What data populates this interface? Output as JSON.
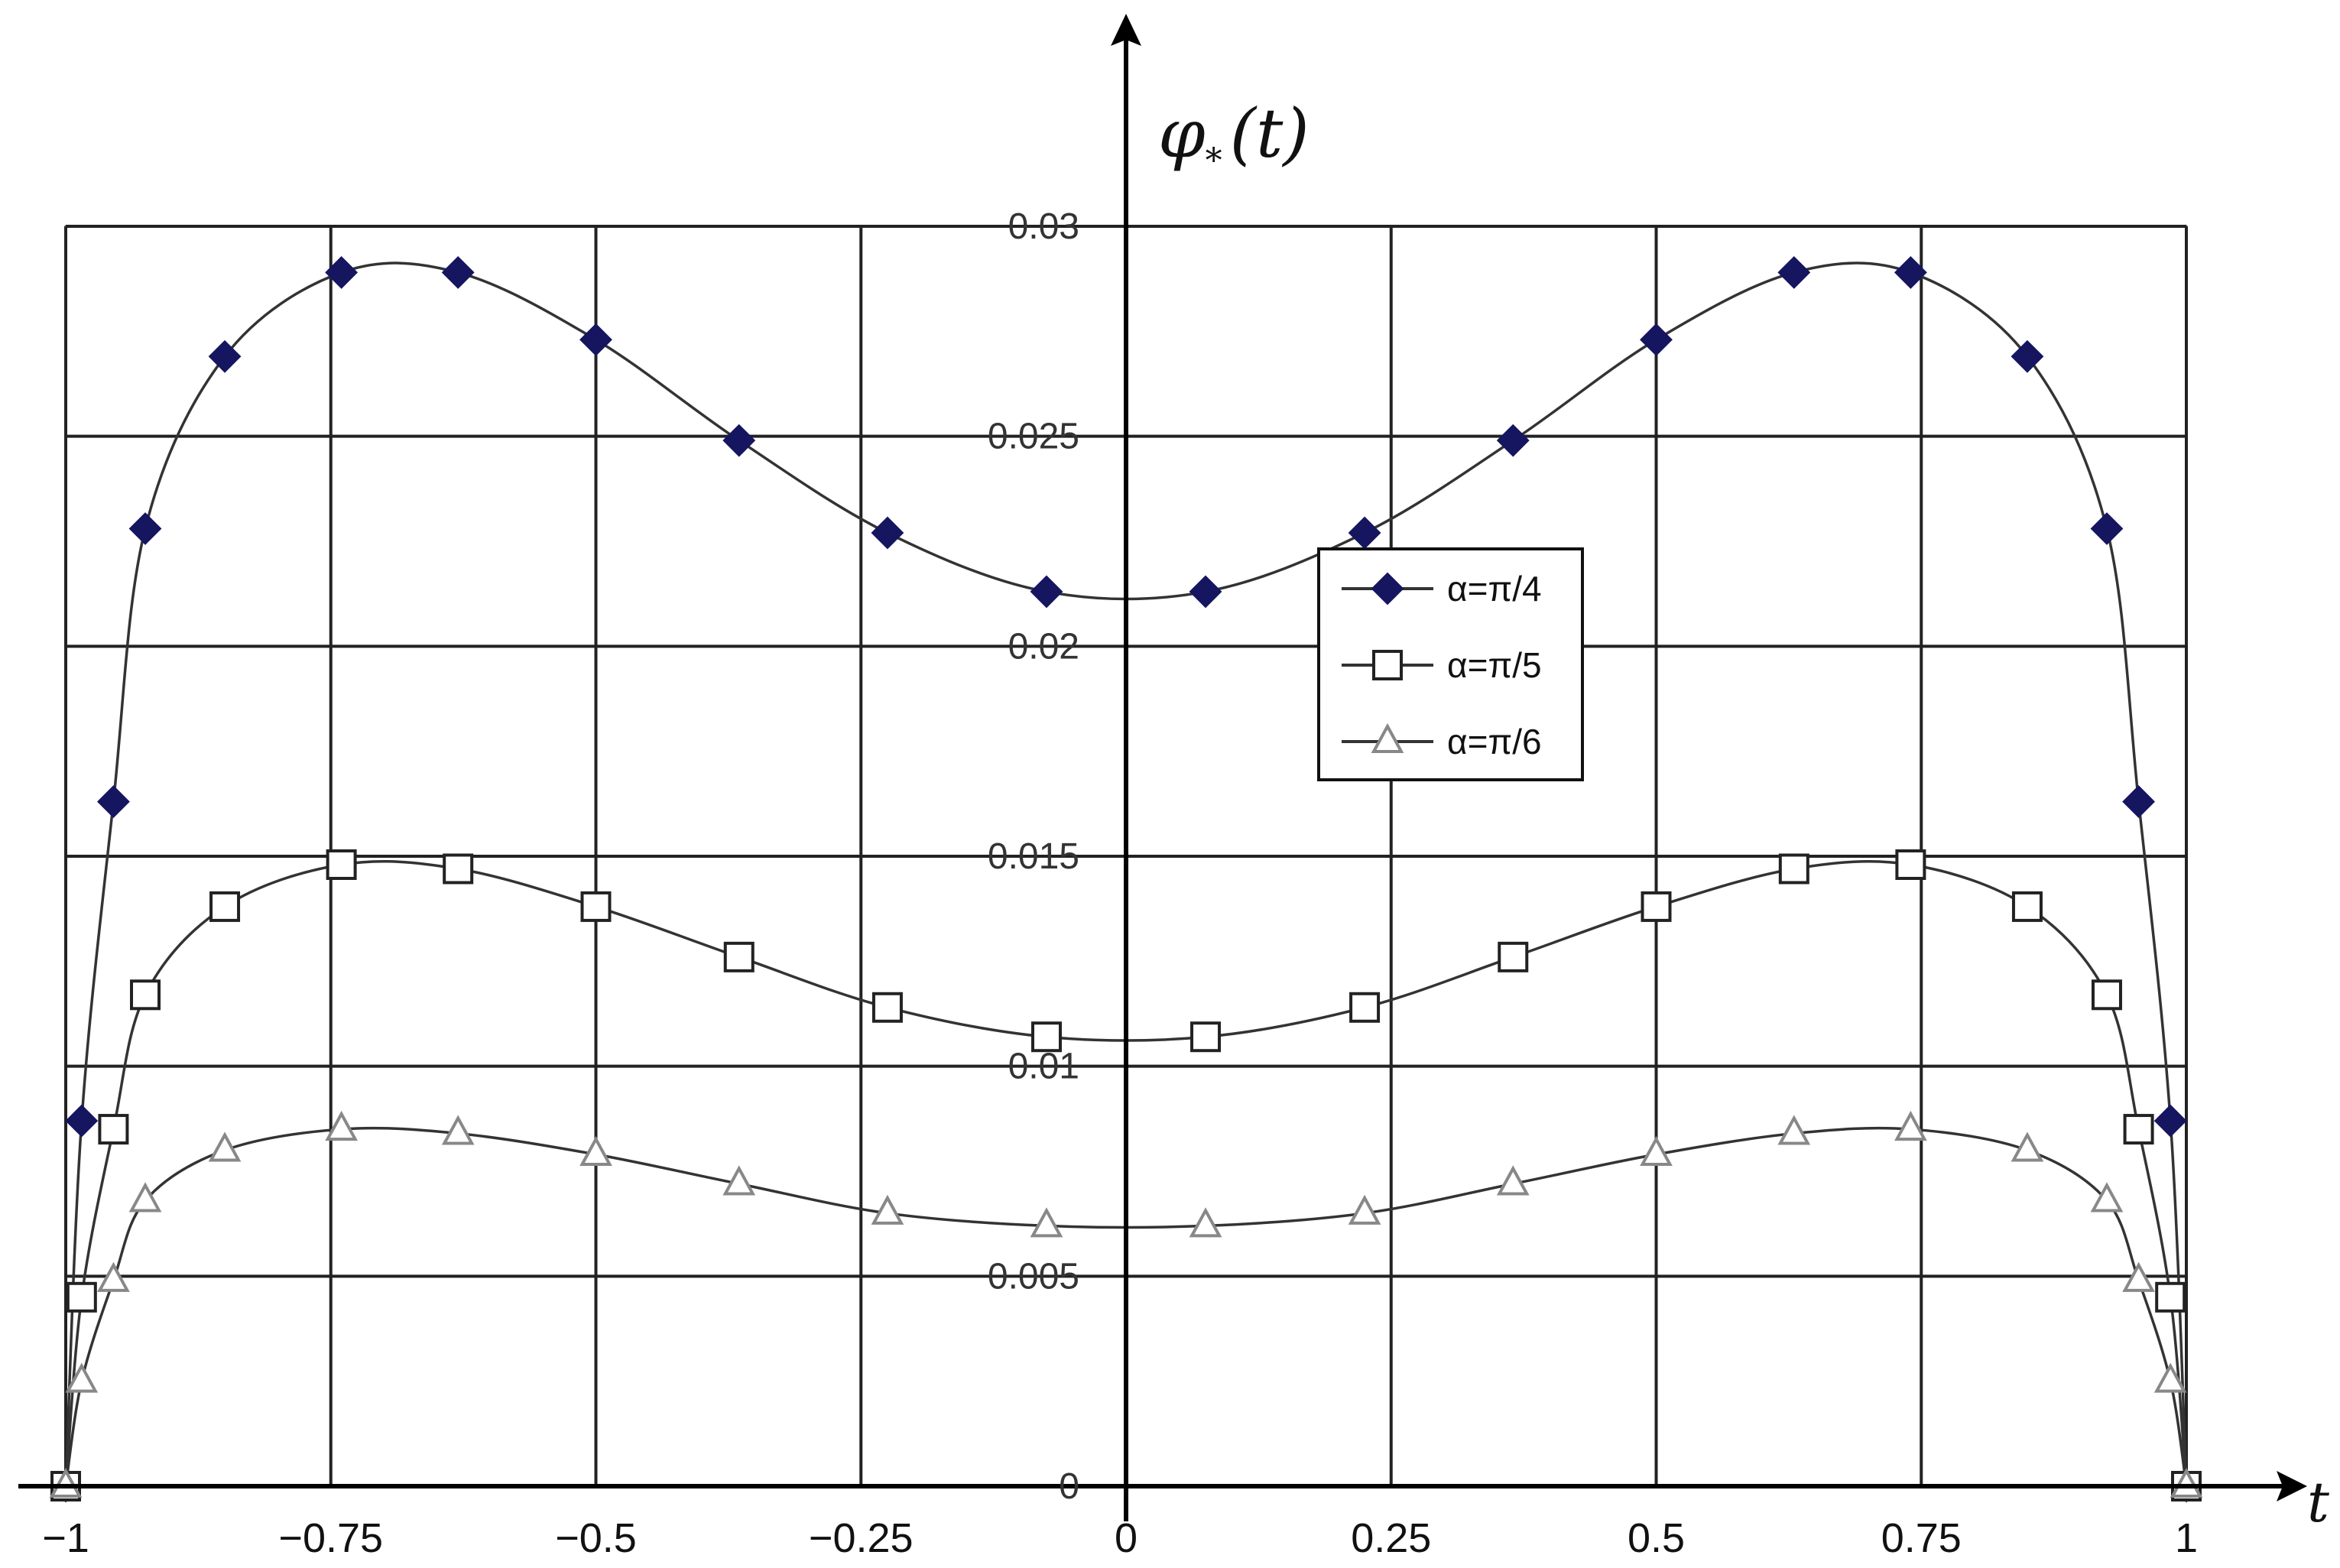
{
  "chart_data": {
    "type": "line",
    "xlabel": "t",
    "ylabel": "φ*(t)",
    "xlim": [
      -1,
      1
    ],
    "ylim": [
      0,
      0.03
    ],
    "grid": true,
    "legend_position": "center-right",
    "x_ticks": [
      -1,
      -0.75,
      -0.5,
      -0.25,
      0,
      0.25,
      0.5,
      0.75,
      1
    ],
    "x_tick_labels": [
      "−1",
      "−0.75",
      "−0.5",
      "−0.25",
      "0",
      "0.25",
      "0.5",
      "0.75",
      "1"
    ],
    "y_ticks": [
      0,
      0.005,
      0.01,
      0.015,
      0.02,
      0.025,
      0.03
    ],
    "y_tick_labels": [
      "0",
      "0.005",
      "0.01",
      "0.015",
      "0.02",
      "0.025",
      "0.03"
    ],
    "x": [
      -1,
      -0.985,
      -0.925,
      -0.85,
      -0.74,
      -0.63,
      -0.5,
      -0.365,
      -0.225,
      -0.075,
      0.075,
      0.225,
      0.365,
      0.5,
      0.63,
      0.74,
      0.85,
      0.925,
      0.985,
      1
    ],
    "series": [
      {
        "name": "α=π/4",
        "marker": "diamond",
        "color": "#1a1a6e",
        "values": [
          0,
          0.0087,
          0.0228,
          0.0269,
          0.0289,
          0.0289,
          0.0273,
          0.0249,
          0.0227,
          0.0213,
          0.0213,
          0.0227,
          0.0249,
          0.0273,
          0.0289,
          0.0289,
          0.0269,
          0.0228,
          0.0087,
          0
        ]
      },
      {
        "name": "α=π/5",
        "marker": "square",
        "color": "#222222",
        "values": [
          0,
          0.0045,
          0.0117,
          0.0138,
          0.0148,
          0.0147,
          0.0138,
          0.0126,
          0.0114,
          0.0107,
          0.0107,
          0.0114,
          0.0126,
          0.0138,
          0.0147,
          0.0148,
          0.0138,
          0.0117,
          0.0045,
          0
        ]
      },
      {
        "name": "α=π/6",
        "marker": "triangle",
        "color": "#777777",
        "values": [
          0,
          0.0025,
          0.0068,
          0.008,
          0.0085,
          0.0084,
          0.0079,
          0.0072,
          0.0065,
          0.0062,
          0.0062,
          0.0065,
          0.0072,
          0.0079,
          0.0084,
          0.0085,
          0.008,
          0.0068,
          0.0025,
          0
        ]
      }
    ],
    "extra_edge_points": {
      "x": [
        -0.955,
        0.955
      ],
      "values": [
        [
          0.0163,
          0.0163
        ],
        [
          0.0085,
          0.0085
        ],
        [
          0.0049,
          0.0049
        ]
      ]
    }
  },
  "labels": {
    "y_axis_symbol": "φ",
    "y_axis_sub": "*",
    "y_axis_arg": "(t)",
    "x_axis_symbol": "t"
  }
}
